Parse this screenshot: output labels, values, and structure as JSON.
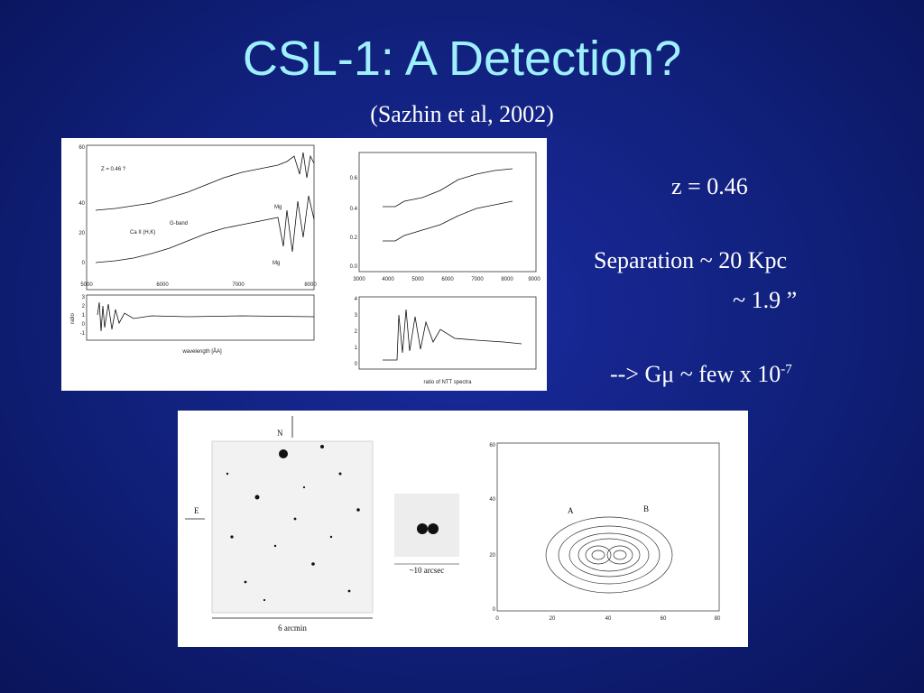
{
  "slide": {
    "title": "CSL-1: A Detection?",
    "subtitle": "(Sazhin et al, 2002)",
    "notes": {
      "redshift": "z = 0.46",
      "separation_line1": "Separation ~ 20 Kpc",
      "separation_line2": "~ 1.9 ”",
      "tension_prefix": "--> Gμ ~ few x 10",
      "tension_exponent": "-7"
    }
  },
  "spectra_figure": {
    "left_panel": {
      "z_label": "Z = 0.46 ?",
      "x_ticks": [
        "5000",
        "6000",
        "7000",
        "8000"
      ],
      "y_ticks_top": [
        "60",
        "40",
        "20",
        "0"
      ],
      "y_ticks_bottom": [
        "3",
        "2",
        "1",
        "0",
        "-1",
        "-2"
      ],
      "x_label": "wavelength [ÅA]",
      "y_label_bottom": "ratio",
      "line_labels": [
        "G-band",
        "Ca II (H,K)",
        "Mg",
        "Mg"
      ]
    },
    "right_panel": {
      "x_ticks": [
        "3000",
        "4000",
        "5000",
        "6000",
        "7000",
        "8000",
        "9000"
      ],
      "y_ticks_top": [
        "0.6",
        "0.4",
        "0.2",
        "0.0",
        "-0.2"
      ],
      "y_ticks_bottom": [
        "4",
        "3",
        "2",
        "1",
        "0"
      ],
      "x_label": "ratio of NTT spectra"
    }
  },
  "image_figure": {
    "finder": {
      "north_label": "N",
      "east_label": "E",
      "scale_label": "6 arcmin"
    },
    "zoom": {
      "scale_label": "~10 arcsec"
    },
    "contour": {
      "label_a": "A",
      "label_b": "B",
      "x_ticks": [
        "0",
        "20",
        "40",
        "60",
        "80"
      ],
      "y_ticks": [
        "0",
        "20",
        "40",
        "60"
      ]
    }
  }
}
